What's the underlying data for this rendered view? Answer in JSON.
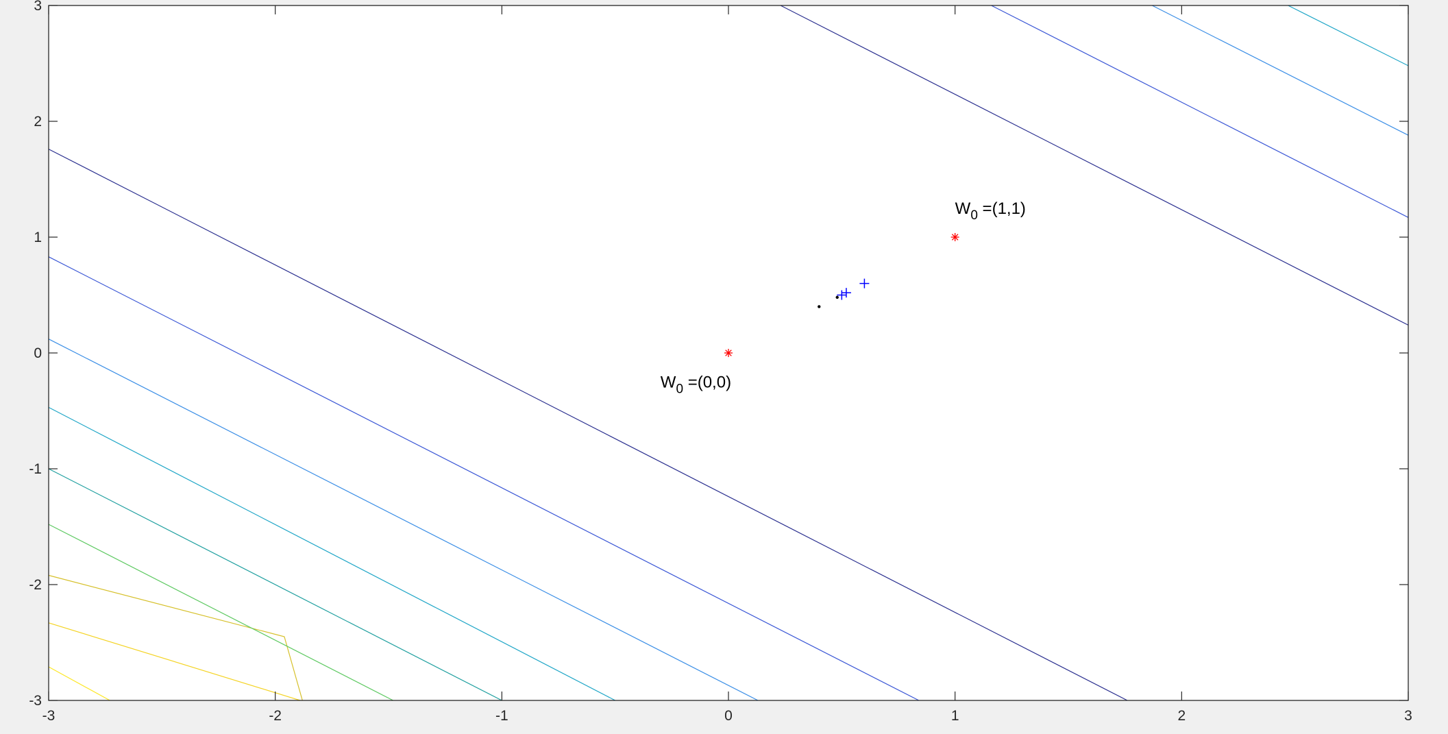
{
  "chart_data": {
    "type": "contour",
    "title": "",
    "xlabel": "",
    "ylabel": "",
    "xlim": [
      -3,
      3
    ],
    "ylim": [
      -3,
      3
    ],
    "x_ticks": [
      "-3",
      "-2",
      "-1",
      "0",
      "1",
      "2",
      "3"
    ],
    "y_ticks": [
      "3",
      "2",
      "1",
      "0",
      "-1",
      "-2",
      "-3"
    ],
    "grid": false,
    "background_color": "#ffffff",
    "figure_color": "#f0f0f0",
    "contour_lines": [
      {
        "color": "#fde725",
        "points": [
          [
            -3.0,
            -2.71
          ],
          [
            -2.73,
            -3.0
          ]
        ]
      },
      {
        "color": "#f4d322",
        "points": [
          [
            -3.0,
            -2.33
          ],
          [
            -1.89,
            -3.0
          ]
        ]
      },
      {
        "color": "#d6c02a",
        "points": [
          [
            -3.0,
            -1.92
          ],
          [
            -1.96,
            -2.45
          ],
          [
            -1.88,
            -3.0
          ]
        ]
      },
      {
        "color": "#5ec962",
        "points": [
          [
            -3.0,
            -1.48
          ],
          [
            -1.48,
            -3.0
          ]
        ]
      },
      {
        "color": "#21a0a0",
        "points": [
          [
            -3.0,
            -1.0
          ],
          [
            -1.0,
            -3.0
          ]
        ]
      },
      {
        "color": "#1fa6c7",
        "points": [
          [
            -3.0,
            -0.47
          ],
          [
            -0.5,
            -3.0
          ]
        ]
      },
      {
        "color": "#3a8ee6",
        "points": [
          [
            -3.0,
            0.12
          ],
          [
            0.13,
            -3.0
          ]
        ]
      },
      {
        "color": "#3b57d6",
        "points": [
          [
            -3.0,
            0.83
          ],
          [
            0.84,
            -3.0
          ]
        ]
      },
      {
        "color": "#2a2f8f",
        "points": [
          [
            -3.0,
            1.76
          ],
          [
            1.76,
            -3.0
          ]
        ]
      },
      {
        "color": "#2a2f8f",
        "points": [
          [
            0.23,
            3.0
          ],
          [
            3.0,
            0.24
          ]
        ]
      },
      {
        "color": "#3b57d6",
        "points": [
          [
            1.16,
            3.0
          ],
          [
            3.0,
            1.17
          ]
        ]
      },
      {
        "color": "#3a8ee6",
        "points": [
          [
            1.87,
            3.0
          ],
          [
            3.0,
            1.88
          ]
        ]
      },
      {
        "color": "#1fa6c7",
        "points": [
          [
            2.47,
            3.0
          ],
          [
            3.0,
            2.48
          ]
        ]
      }
    ],
    "series": [
      {
        "marker": "*",
        "color": "#ff0000",
        "points": [
          [
            0,
            0
          ],
          [
            1,
            1
          ]
        ]
      },
      {
        "marker": "+",
        "color": "#0000ff",
        "points": [
          [
            0.6,
            0.6
          ],
          [
            0.52,
            0.52
          ],
          [
            0.5,
            0.5
          ]
        ]
      },
      {
        "marker": ".",
        "color": "#000000",
        "points": [
          [
            0.4,
            0.4
          ],
          [
            0.48,
            0.48
          ]
        ]
      }
    ],
    "annotations": [
      {
        "base": "W",
        "sub": "0",
        "rest": " =(0,0)",
        "x": -0.3,
        "y": -0.3
      },
      {
        "base": "W",
        "sub": "0",
        "rest": " =(1,1)",
        "x": 1.0,
        "y": 1.2
      }
    ]
  }
}
